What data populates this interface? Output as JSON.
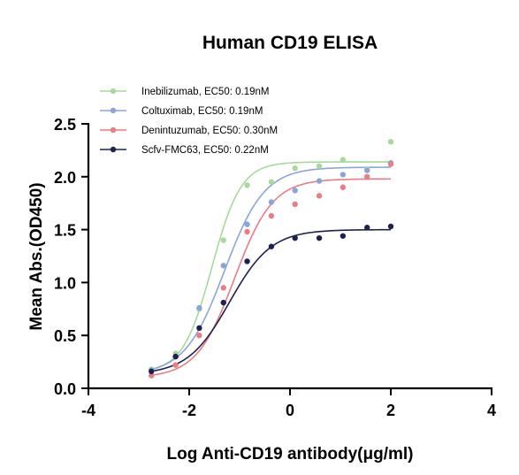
{
  "chart_data": {
    "type": "scatter",
    "title": "Human CD19 ELISA",
    "xlabel": "Log Anti-CD19 antibody(μg/ml)",
    "ylabel": "Mean Abs.(OD450)",
    "xlim": [
      -4,
      4
    ],
    "ylim": [
      0,
      2.5
    ],
    "xticks": [
      "-4",
      "-2",
      "0",
      "2",
      "4"
    ],
    "yticks": [
      "0.0",
      "0.5",
      "1.0",
      "1.5",
      "2.0",
      "2.5"
    ],
    "legend_position": "top-left",
    "grid": false,
    "series": [
      {
        "name": "Inebilizumab, EC50: 0.19nM",
        "color": "#a8d99a",
        "x": [
          -2.75,
          -2.27,
          -1.8,
          -1.32,
          -0.85,
          -0.37,
          0.1,
          0.58,
          1.05,
          1.53,
          2.0
        ],
        "y": [
          0.18,
          0.33,
          0.75,
          1.4,
          1.92,
          1.95,
          2.08,
          2.1,
          2.16,
          2.07,
          2.33
        ],
        "fit": {
          "bottom": 0.15,
          "top": 2.14,
          "logEC50": -1.55,
          "hill": 1.5
        }
      },
      {
        "name": "Coltuximab, EC50: 0.19nM",
        "color": "#8aa6d8",
        "x": [
          -2.75,
          -2.27,
          -1.8,
          -1.32,
          -0.85,
          -0.37,
          0.1,
          0.58,
          1.05,
          1.53,
          2.0
        ],
        "y": [
          0.17,
          0.3,
          0.76,
          1.16,
          1.55,
          1.76,
          1.87,
          1.96,
          2.02,
          2.06,
          2.13
        ],
        "fit": {
          "bottom": 0.13,
          "top": 2.09,
          "logEC50": -1.3,
          "hill": 1.1
        }
      },
      {
        "name": "Denintuzumab, EC50: 0.30nM",
        "color": "#e87d85",
        "x": [
          -2.75,
          -2.27,
          -1.8,
          -1.32,
          -0.85,
          -0.37,
          0.1,
          0.58,
          1.05,
          1.53,
          2.0
        ],
        "y": [
          0.12,
          0.22,
          0.5,
          0.95,
          1.48,
          1.63,
          1.74,
          1.82,
          1.9,
          2.0,
          2.12
        ],
        "fit": {
          "bottom": 0.1,
          "top": 1.98,
          "logEC50": -1.1,
          "hill": 1.15
        }
      },
      {
        "name": "Scfv-FMC63, EC50: 0.22nM",
        "color": "#1e2150",
        "x": [
          -2.75,
          -2.27,
          -1.8,
          -1.32,
          -0.85,
          -0.37,
          0.1,
          0.58,
          1.05,
          1.53,
          2.0
        ],
        "y": [
          0.16,
          0.3,
          0.57,
          0.81,
          1.2,
          1.34,
          1.42,
          1.42,
          1.44,
          1.52,
          1.53
        ],
        "fit": {
          "bottom": 0.13,
          "top": 1.5,
          "logEC50": -1.2,
          "hill": 1.05
        }
      }
    ]
  }
}
